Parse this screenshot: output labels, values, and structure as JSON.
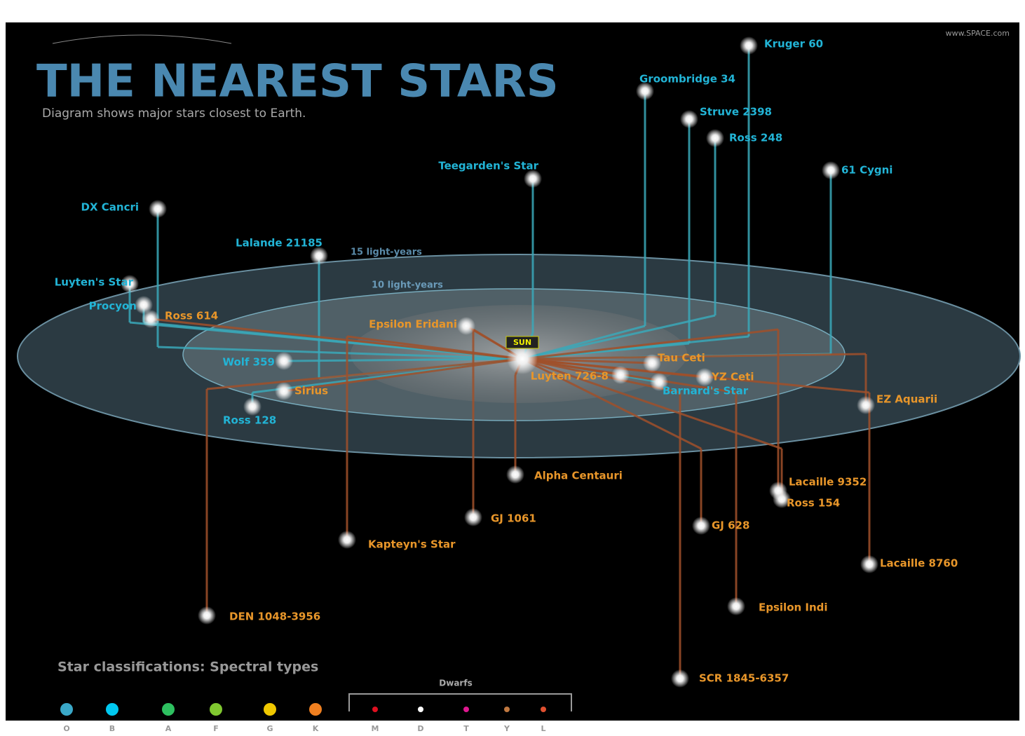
{
  "header": {
    "website": "www.SPACE.com",
    "title": "THE NEAREST STARS",
    "subtitle": "Diagram shows major stars closest to Earth."
  },
  "rings": [
    "15 light-years",
    "10 light-years"
  ],
  "sun": "SUN",
  "stars": [
    {
      "label": "Kruger 60",
      "color": "#22b4d6"
    },
    {
      "label": "Groombridge 34",
      "color": "#22b4d6"
    },
    {
      "label": "Struve 2398",
      "color": "#22b4d6"
    },
    {
      "label": "Ross 248",
      "color": "#22b4d6"
    },
    {
      "label": "61 Cygni",
      "color": "#22b4d6"
    },
    {
      "label": "Teegarden's Star",
      "color": "#22b4d6"
    },
    {
      "label": "DX Cancri",
      "color": "#22b4d6"
    },
    {
      "label": "Lalande 21185",
      "color": "#22b4d6"
    },
    {
      "label": "Luyten's Star",
      "color": "#22b4d6"
    },
    {
      "label": "Procyon",
      "color": "#22b4d6"
    },
    {
      "label": "Wolf 359",
      "color": "#22b4d6"
    },
    {
      "label": "Ross 128",
      "color": "#22b4d6"
    },
    {
      "label": "Barnard's Star",
      "color": "#22b4d6"
    },
    {
      "label": "Ross 614",
      "color": "#e8962a"
    },
    {
      "label": "Epsilon Eridani",
      "color": "#e8962a"
    },
    {
      "label": "Sirius",
      "color": "#e8962a"
    },
    {
      "label": "Luyten 726-8",
      "color": "#e8962a"
    },
    {
      "label": "Tau Ceti",
      "color": "#e8962a"
    },
    {
      "label": "YZ Ceti",
      "color": "#e8962a"
    },
    {
      "label": "EZ Aquarii",
      "color": "#e8962a"
    },
    {
      "label": "Alpha Centauri",
      "color": "#e8962a"
    },
    {
      "label": "GJ 1061",
      "color": "#e8962a"
    },
    {
      "label": "Kapteyn's Star",
      "color": "#e8962a"
    },
    {
      "label": "Lacaille 9352",
      "color": "#e8962a"
    },
    {
      "label": "Ross 154",
      "color": "#e8962a"
    },
    {
      "label": "GJ 628",
      "color": "#e8962a"
    },
    {
      "label": "Lacaille 8760",
      "color": "#e8962a"
    },
    {
      "label": "Epsilon Indi",
      "color": "#e8962a"
    },
    {
      "label": "DEN 1048-3956",
      "color": "#e8962a"
    },
    {
      "label": "SCR 1845-6357",
      "color": "#e8962a"
    }
  ],
  "legend": {
    "title": "Star classifications: Spectral types",
    "dwarfs": "Dwarfs",
    "types": [
      {
        "letter": "O",
        "color": "#3aa8c8"
      },
      {
        "letter": "B",
        "color": "#00c8f0"
      },
      {
        "letter": "A",
        "color": "#2ec060"
      },
      {
        "letter": "F",
        "color": "#80c830"
      },
      {
        "letter": "G",
        "color": "#f0c800"
      },
      {
        "letter": "K",
        "color": "#f08020"
      },
      {
        "letter": "M",
        "color": "#e01020"
      },
      {
        "letter": "D",
        "color": "#ffffff"
      },
      {
        "letter": "T",
        "color": "#e01890"
      },
      {
        "letter": "Y",
        "color": "#c07840"
      },
      {
        "letter": "L",
        "color": "#e05030"
      }
    ]
  }
}
